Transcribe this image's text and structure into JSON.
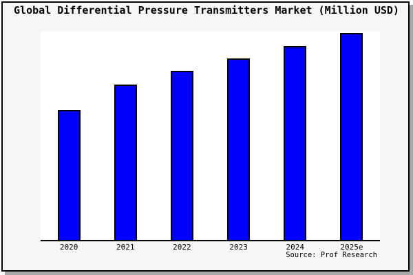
{
  "window": {
    "background": "#f6f6f6",
    "border_color": "#000000",
    "shadow_color": "#a8a8a8"
  },
  "header": {
    "title": "Global Differential Pressure Transmitters Market (Million USD)"
  },
  "footer": {
    "source": "Source: Prof Research"
  },
  "chart_data": {
    "type": "bar",
    "title": "Global Differential Pressure Transmitters Market (Million USD)",
    "categories": [
      "2020",
      "2021",
      "2022",
      "2023",
      "2024",
      "2025e"
    ],
    "values": [
      62.8,
      75.1,
      81.7,
      87.7,
      93.7,
      100
    ],
    "value_note": "no y-axis, gridlines or data labels are shown; values are estimated relative bar heights with 2025e = 100",
    "xlabel": "",
    "ylabel": "",
    "ylim": [
      0,
      101.3
    ],
    "grid": false,
    "legend": false,
    "bar_color": "#0000ff",
    "bar_border_color": "#000000",
    "plot_background": "#ffffff",
    "axis_line_color": "#000000",
    "annotation": "Source: Prof Research"
  }
}
